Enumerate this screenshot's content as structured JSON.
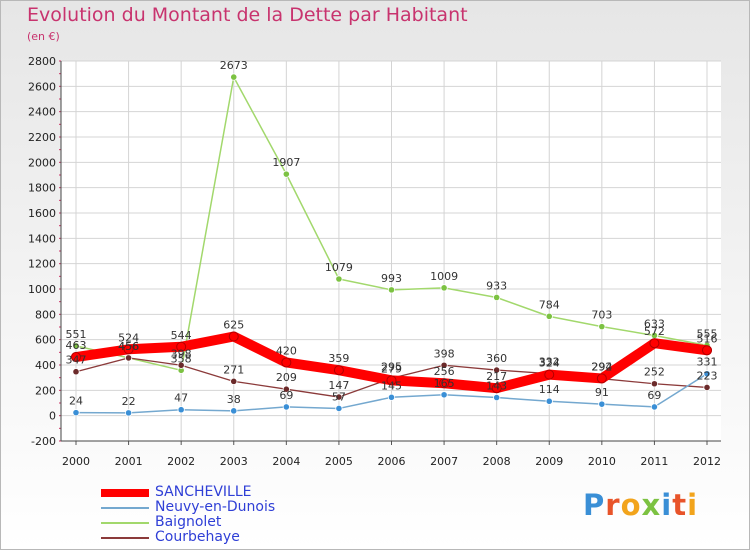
{
  "header": {
    "title": "Evolution du Montant de la Dette par Habitant",
    "subtitle": "(en €)"
  },
  "logo": {
    "text": "Proxiti",
    "colors": [
      "#3a8fd6",
      "#e8542a",
      "#f2a41c",
      "#7cc242",
      "#3a8fd6",
      "#e8542a",
      "#f2a41c"
    ]
  },
  "chart_data": {
    "type": "line",
    "title": "Evolution du Montant de la Dette par Habitant",
    "ylabel": "(en €)",
    "xlabel": "",
    "x": [
      "2000",
      "2001",
      "2002",
      "2003",
      "2004",
      "2005",
      "2006",
      "2007",
      "2008",
      "2009",
      "2010",
      "2011",
      "2012"
    ],
    "ylim": [
      -200,
      2800
    ],
    "yticks": [
      "-200",
      "0",
      "200",
      "400",
      "600",
      "800",
      "1000",
      "1200",
      "1400",
      "1600",
      "1800",
      "2000",
      "2200",
      "2400",
      "2600",
      "2800"
    ],
    "grid": true,
    "legend_position": "bottom-left",
    "series": [
      {
        "name": "SANCHEVILLE",
        "color": "#ff0000",
        "marker": "#ff0000",
        "values": [
          463,
          524,
          544,
          625,
          420,
          359,
          279,
          256,
          217,
          324,
          294,
          572,
          516
        ]
      },
      {
        "name": "Neuvy-en-Dunois",
        "color": "#74a8cf",
        "marker": "#3a8fd6",
        "values": [
          24,
          22,
          47,
          38,
          69,
          57,
          145,
          165,
          143,
          114,
          91,
          69,
          331
        ]
      },
      {
        "name": "Baignolet",
        "color": "#a2d86c",
        "marker": "#7cc242",
        "values": [
          551,
          456,
          358,
          2673,
          1907,
          1079,
          993,
          1009,
          933,
          784,
          703,
          633,
          555
        ]
      },
      {
        "name": "Courbehaye",
        "color": "#8b3a3a",
        "marker": "#6b2a2a",
        "values": [
          347,
          456,
          398,
          271,
          209,
          147,
          295,
          398,
          360,
          332,
          292,
          252,
          223
        ]
      }
    ]
  }
}
